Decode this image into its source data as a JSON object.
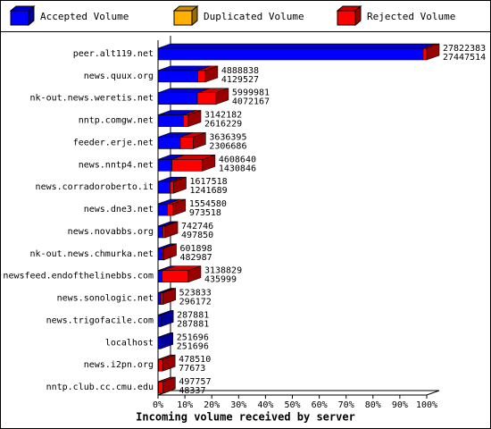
{
  "chart_data": {
    "type": "bar",
    "orientation": "horizontal",
    "stacked": true,
    "three_d": true,
    "title": "Incoming volume received by server",
    "categories": [
      "peer.alt119.net",
      "news.quux.org",
      "nk-out.news.weretis.net",
      "nntp.comgw.net",
      "feeder.erje.net",
      "news.nntp4.net",
      "news.corradoroberto.it",
      "news.dne3.net",
      "news.novabbs.org",
      "nk-out.news.chmurka.net",
      "newsfeed.endofthelinebbs.com",
      "news.sonologic.net",
      "news.trigofacile.com",
      "localhost",
      "news.i2pn.org",
      "nntp.club.cc.cmu.edu"
    ],
    "series": [
      {
        "name": "Accepted Volume",
        "color": "#0000ff",
        "values": [
          27447514,
          4129527,
          4072167,
          2616229,
          2306686,
          1430846,
          1241689,
          973518,
          497850,
          482987,
          435999,
          296172,
          287881,
          251696,
          77673,
          48337
        ]
      },
      {
        "name": "Duplicated Volume",
        "color": "#ffb000",
        "values": [
          0,
          0,
          0,
          0,
          0,
          0,
          0,
          0,
          0,
          0,
          0,
          0,
          0,
          0,
          0,
          0
        ]
      },
      {
        "name": "Rejected Volume",
        "color": "#ff0000",
        "values": [
          374869,
          759311,
          1927814,
          525953,
          1329709,
          3177794,
          375829,
          581062,
          244896,
          118911,
          2702830,
          227661,
          0,
          0,
          400837,
          449420
        ]
      }
    ],
    "totals": [
      27822383,
      4888838,
      5999981,
      3142182,
      3636395,
      4608640,
      1617518,
      1554580,
      742746,
      601898,
      3138829,
      523833,
      287881,
      251696,
      478510,
      497757
    ],
    "xlim": [
      0,
      27822383
    ],
    "xticks": [
      {
        "value": 0,
        "label": "0%"
      },
      {
        "value": 2782238.3,
        "label": "10%"
      },
      {
        "value": 5564476.6,
        "label": "20%"
      },
      {
        "value": 8346714.9,
        "label": "30%"
      },
      {
        "value": 11128953.2,
        "label": "40%"
      },
      {
        "value": 13911191.5,
        "label": "50%"
      },
      {
        "value": 16693429.8,
        "label": "60%"
      },
      {
        "value": 19475668.1,
        "label": "70%"
      },
      {
        "value": 22257906.4,
        "label": "80%"
      },
      {
        "value": 25040144.7,
        "label": "90%"
      },
      {
        "value": 27822383,
        "label": "100%"
      }
    ]
  }
}
